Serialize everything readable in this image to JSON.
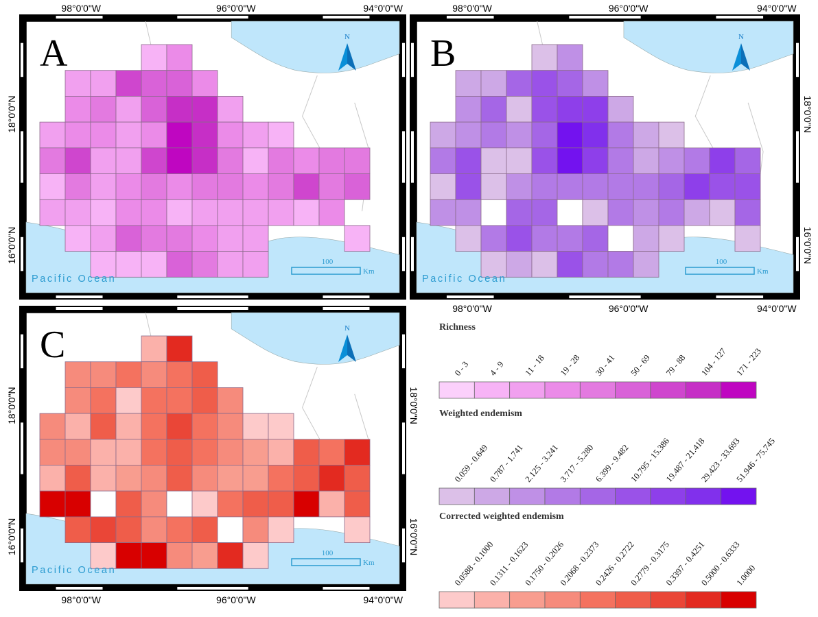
{
  "maps": [
    {
      "letter": "A",
      "top_labels": [
        "98°0'0\"W",
        "96°0'0\"W",
        "94°0'0\"W"
      ],
      "left_labels": [
        "18°0'0\"N",
        "16°0'0\"N"
      ],
      "right_labels": [],
      "bottom_labels": [],
      "ocean_label": "Pacific Ocean",
      "scale_value": "100",
      "scale_unit": "Km",
      "north_label": "N",
      "palette": "richness",
      "grid": [
        [
          null,
          null,
          null,
          null,
          1,
          3,
          null,
          null,
          null,
          null,
          null,
          null,
          null
        ],
        [
          null,
          2,
          2,
          6,
          5,
          5,
          3,
          null,
          null,
          null,
          null,
          null,
          null
        ],
        [
          null,
          3,
          4,
          2,
          5,
          7,
          7,
          2,
          null,
          null,
          null,
          null,
          null
        ],
        [
          2,
          3,
          3,
          2,
          3,
          8,
          7,
          3,
          2,
          1,
          null,
          null,
          null
        ],
        [
          4,
          6,
          2,
          2,
          6,
          8,
          7,
          4,
          1,
          4,
          3,
          4,
          4
        ],
        [
          1,
          4,
          2,
          3,
          4,
          3,
          4,
          4,
          3,
          4,
          6,
          4,
          5
        ],
        [
          2,
          2,
          1,
          3,
          3,
          1,
          2,
          2,
          2,
          2,
          1,
          3,
          null
        ],
        [
          null,
          1,
          2,
          5,
          4,
          4,
          3,
          2,
          2,
          null,
          null,
          null,
          1
        ],
        [
          null,
          null,
          1,
          1,
          1,
          5,
          4,
          2,
          2,
          null,
          null,
          null,
          null
        ]
      ]
    },
    {
      "letter": "B",
      "top_labels": [
        "98°0'0\"W",
        "96°0'0\"W",
        "94°0'0\"W"
      ],
      "left_labels": [],
      "right_labels": [
        "18°0'0\"N",
        "16°0'0\"N"
      ],
      "bottom_labels": [
        "98°0'0\"W",
        "96°0'0\"W",
        "94°0'0\"W"
      ],
      "ocean_label": "Pacific Ocean",
      "scale_value": "100",
      "scale_unit": "Km",
      "north_label": "N",
      "palette": "weighted",
      "grid": [
        [
          null,
          null,
          null,
          null,
          0,
          2,
          null,
          null,
          null,
          null,
          null,
          null,
          null
        ],
        [
          null,
          1,
          1,
          4,
          5,
          4,
          2,
          null,
          null,
          null,
          null,
          null,
          null
        ],
        [
          null,
          2,
          4,
          0,
          5,
          6,
          6,
          1,
          null,
          null,
          null,
          null,
          null
        ],
        [
          1,
          2,
          3,
          2,
          4,
          8,
          7,
          3,
          1,
          0,
          null,
          null,
          null
        ],
        [
          3,
          5,
          0,
          0,
          5,
          8,
          6,
          3,
          1,
          2,
          3,
          6,
          4
        ],
        [
          0,
          5,
          0,
          2,
          3,
          3,
          3,
          3,
          3,
          4,
          6,
          5,
          5
        ],
        [
          2,
          2,
          -1,
          4,
          4,
          -1,
          0,
          3,
          2,
          3,
          1,
          0,
          4
        ],
        [
          null,
          0,
          3,
          5,
          3,
          3,
          4,
          -1,
          1,
          0,
          null,
          null,
          0
        ],
        [
          null,
          null,
          0,
          1,
          0,
          5,
          3,
          3,
          1,
          null,
          null,
          null,
          null
        ]
      ]
    },
    {
      "letter": "C",
      "top_labels": [],
      "left_labels": [
        "18°0'0\"N",
        "16°0'0\"N"
      ],
      "right_labels": [
        "18°0'0\"N",
        "16°0'0\"N"
      ],
      "bottom_labels": [
        "98°0'0\"W",
        "96°0'0\"W",
        "94°0'0\"W"
      ],
      "ocean_label": "Pacific Ocean",
      "scale_value": "100",
      "scale_unit": "Km",
      "north_label": "N",
      "palette": "corrected",
      "grid": [
        [
          null,
          null,
          null,
          null,
          1,
          7,
          null,
          null,
          null,
          null,
          null,
          null,
          null
        ],
        [
          null,
          3,
          3,
          4,
          3,
          4,
          5,
          null,
          null,
          null,
          null,
          null,
          null
        ],
        [
          null,
          3,
          4,
          0,
          4,
          4,
          5,
          3,
          null,
          null,
          null,
          null,
          null
        ],
        [
          3,
          1,
          5,
          1,
          4,
          6,
          4,
          3,
          0,
          0,
          null,
          null,
          null
        ],
        [
          3,
          3,
          1,
          1,
          4,
          5,
          4,
          3,
          2,
          1,
          5,
          4,
          7
        ],
        [
          1,
          5,
          1,
          2,
          3,
          5,
          3,
          2,
          2,
          4,
          5,
          7,
          5
        ],
        [
          8,
          8,
          -1,
          5,
          3,
          -1,
          0,
          4,
          5,
          5,
          8,
          1,
          5
        ],
        [
          null,
          5,
          6,
          5,
          3,
          4,
          5,
          -1,
          3,
          0,
          null,
          null,
          0
        ],
        [
          null,
          null,
          0,
          9,
          8,
          3,
          2,
          7,
          0,
          null,
          null,
          null,
          null
        ]
      ]
    }
  ],
  "legend": {
    "sections": [
      {
        "title": "Richness",
        "classes": [
          "0 - 3",
          "4 - 9",
          "11 - 18",
          "19 - 28",
          "30 - 41",
          "50 - 69",
          "79 - 88",
          "104 - 127",
          "171 - 223"
        ],
        "colors": [
          "#fbd0fb",
          "#f7b3f6",
          "#f1a0ef",
          "#eb8be8",
          "#e37ae0",
          "#d962d8",
          "#cf46ce",
          "#c62fc6",
          "#bf06c1"
        ]
      },
      {
        "title": "Weighted endemism",
        "classes": [
          "0.059 - 0.649",
          "0.787 - 1.741",
          "2.125 - 3.241",
          "3.717 - 5.280",
          "6.399 - 9.482",
          "10.795 - 15.386",
          "19.487 - 21.418",
          "29.423 - 33.693",
          "51.946 - 75.745"
        ],
        "colors": [
          "#dcc0e8",
          "#cda8e6",
          "#bf90e6",
          "#b27ae6",
          "#a566e6",
          "#9a52e8",
          "#8e3fea",
          "#8130ec",
          "#7312ef"
        ]
      },
      {
        "title": "Corrected weighted endemism",
        "classes": [
          "0.0588 - 0.1000",
          "0.1311 - 0.1623",
          "0.1750 - 0.2026",
          "0.2068 - 0.2373",
          "0.2426 - 0.2722",
          "0.2779 - 0.3175",
          "0.3397 - 0.4251",
          "0.5000 - 0.6333",
          "1.0000"
        ],
        "colors": [
          "#fdcaca",
          "#fbb1aa",
          "#f89d8f",
          "#f68b7c",
          "#f4725f",
          "#ef5d4a",
          "#ea4637",
          "#e32a20",
          "#d80000"
        ]
      }
    ]
  }
}
